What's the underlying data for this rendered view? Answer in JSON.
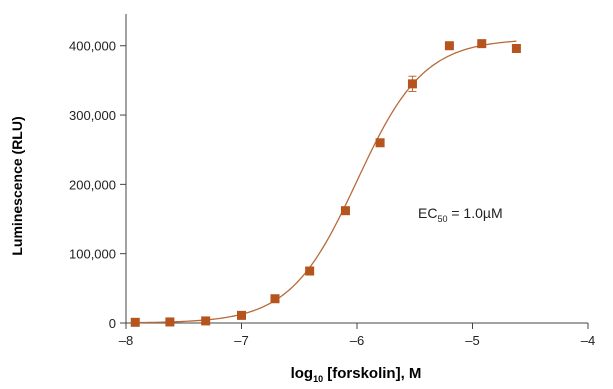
{
  "chart_data": {
    "type": "scatter",
    "xlabel_main": "log",
    "xlabel_sub": "10",
    "xlabel_rest": " [forskolin], M",
    "ylabel": "Luminescence (RLU)",
    "xlim": [
      -8,
      -4
    ],
    "ylim": [
      0,
      440000
    ],
    "x_ticks": [
      -8,
      -7,
      -6,
      -5,
      -4
    ],
    "x_tick_labels": [
      "–8",
      "–7",
      "–6",
      "–5",
      "–4"
    ],
    "y_ticks": [
      0,
      100000,
      200000,
      300000,
      400000
    ],
    "y_tick_labels": [
      "0",
      "100,000",
      "200,000",
      "300,000",
      "400,000"
    ],
    "annotation": {
      "main": "EC",
      "sub": "50",
      "rest": " = 1.0µM"
    },
    "colors": {
      "marker": "#b5541c",
      "curve": "#b86a3a",
      "axis": "#444444"
    },
    "points": [
      {
        "x": -7.92,
        "y": 1000
      },
      {
        "x": -7.62,
        "y": 1500
      },
      {
        "x": -7.31,
        "y": 3000
      },
      {
        "x": -7.0,
        "y": 11000
      },
      {
        "x": -6.71,
        "y": 35000
      },
      {
        "x": -6.41,
        "y": 75000
      },
      {
        "x": -6.1,
        "y": 162000
      },
      {
        "x": -5.8,
        "y": 260000
      },
      {
        "x": -5.52,
        "y": 345000,
        "err": 11000
      },
      {
        "x": -5.2,
        "y": 400000
      },
      {
        "x": -4.92,
        "y": 403000
      },
      {
        "x": -4.62,
        "y": 396000
      }
    ],
    "fit": {
      "model": "4PL",
      "bottom": 0,
      "top": 410000,
      "logEC50": -6.0,
      "hill": 1.5
    }
  }
}
